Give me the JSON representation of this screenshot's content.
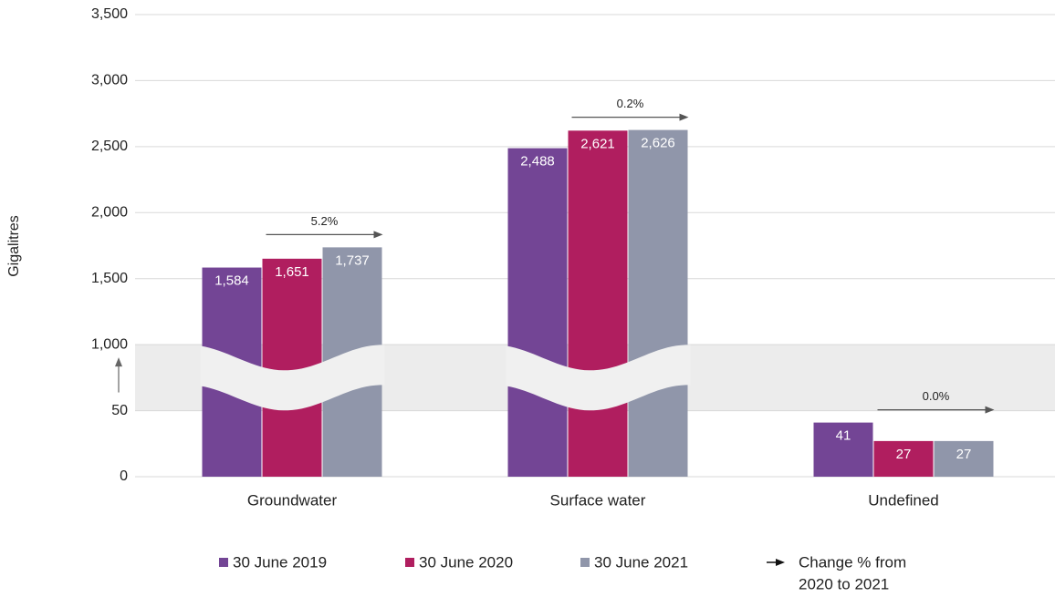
{
  "chart_data": {
    "type": "bar",
    "y_label": "Gigalitres",
    "categories": [
      "Groundwater",
      "Surface water",
      "Undefined"
    ],
    "series": [
      {
        "name": "30 June 2019",
        "color": "#734595",
        "values": [
          1584,
          2488,
          41
        ],
        "value_labels": [
          "1,584",
          "2,488",
          "41"
        ]
      },
      {
        "name": "30 June 2020",
        "color": "#b01e5f",
        "values": [
          1651,
          2621,
          27
        ],
        "value_labels": [
          "1,651",
          "2,621",
          "27"
        ]
      },
      {
        "name": "30 June 2021",
        "color": "#9096aa",
        "values": [
          1737,
          2626,
          27
        ],
        "value_labels": [
          "1,737",
          "2,626",
          "27"
        ]
      }
    ],
    "ylim": [
      0,
      3500
    ],
    "yticks": [
      0,
      50,
      {
        "value": 1000,
        "label": "1,000"
      },
      {
        "value": 1500,
        "label": "1,500"
      },
      {
        "value": 2000,
        "label": "2,000"
      },
      {
        "value": 2500,
        "label": "2,500"
      },
      {
        "value": 3000,
        "label": "3,000"
      },
      {
        "value": 3500,
        "label": "3,500"
      }
    ],
    "axis_break": [
      50,
      1000
    ],
    "grid": true,
    "annotations": [
      "5.2%",
      "0.2%",
      "0.0%"
    ],
    "change_legend": [
      "Change % from",
      "2020 to 2021"
    ],
    "legend_position": "bottom"
  }
}
